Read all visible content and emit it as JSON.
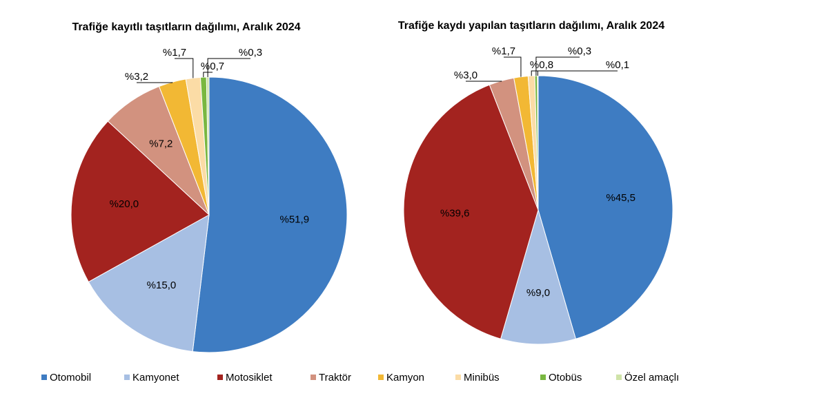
{
  "chart_data": [
    {
      "type": "pie",
      "title": "Trafiğe kayıtlı taşıtların dağılımı, Aralık 2024",
      "categories": [
        "Otomobil",
        "Kamyonet",
        "Motosiklet",
        "Traktör",
        "Kamyon",
        "Minibüs",
        "Otobüs",
        "Özel amaçlı"
      ],
      "colors": [
        "#3e7cc2",
        "#a7bfe3",
        "#a3231f",
        "#d2927f",
        "#f2b834",
        "#fbdca6",
        "#79b740",
        "#cfe3a8"
      ],
      "values": [
        51.9,
        15.0,
        20.0,
        7.2,
        3.2,
        1.7,
        0.7,
        0.3
      ],
      "value_labels": [
        "%51,9",
        "%15,0",
        "%20,0",
        "%7,2",
        "%3,2",
        "%1,7",
        "%0,7",
        "%0,3"
      ]
    },
    {
      "type": "pie",
      "title": "Trafiğe kaydı yapılan taşıtların dağılımı, Aralık 2024",
      "categories": [
        "Otomobil",
        "Kamyonet",
        "Motosiklet",
        "Traktör",
        "Kamyon",
        "Minibüs",
        "Otobüs",
        "Özel amaçlı"
      ],
      "colors": [
        "#3e7cc2",
        "#a7bfe3",
        "#a3231f",
        "#d2927f",
        "#f2b834",
        "#fbdca6",
        "#79b740",
        "#cfe3a8"
      ],
      "values": [
        45.5,
        9.0,
        39.6,
        3.0,
        1.7,
        0.8,
        0.3,
        0.1
      ],
      "value_labels": [
        "%45,5",
        "%9,0",
        "%39,6",
        "%3,0",
        "%1,7",
        "%0,8",
        "%0,3",
        "%0,1"
      ]
    }
  ]
}
